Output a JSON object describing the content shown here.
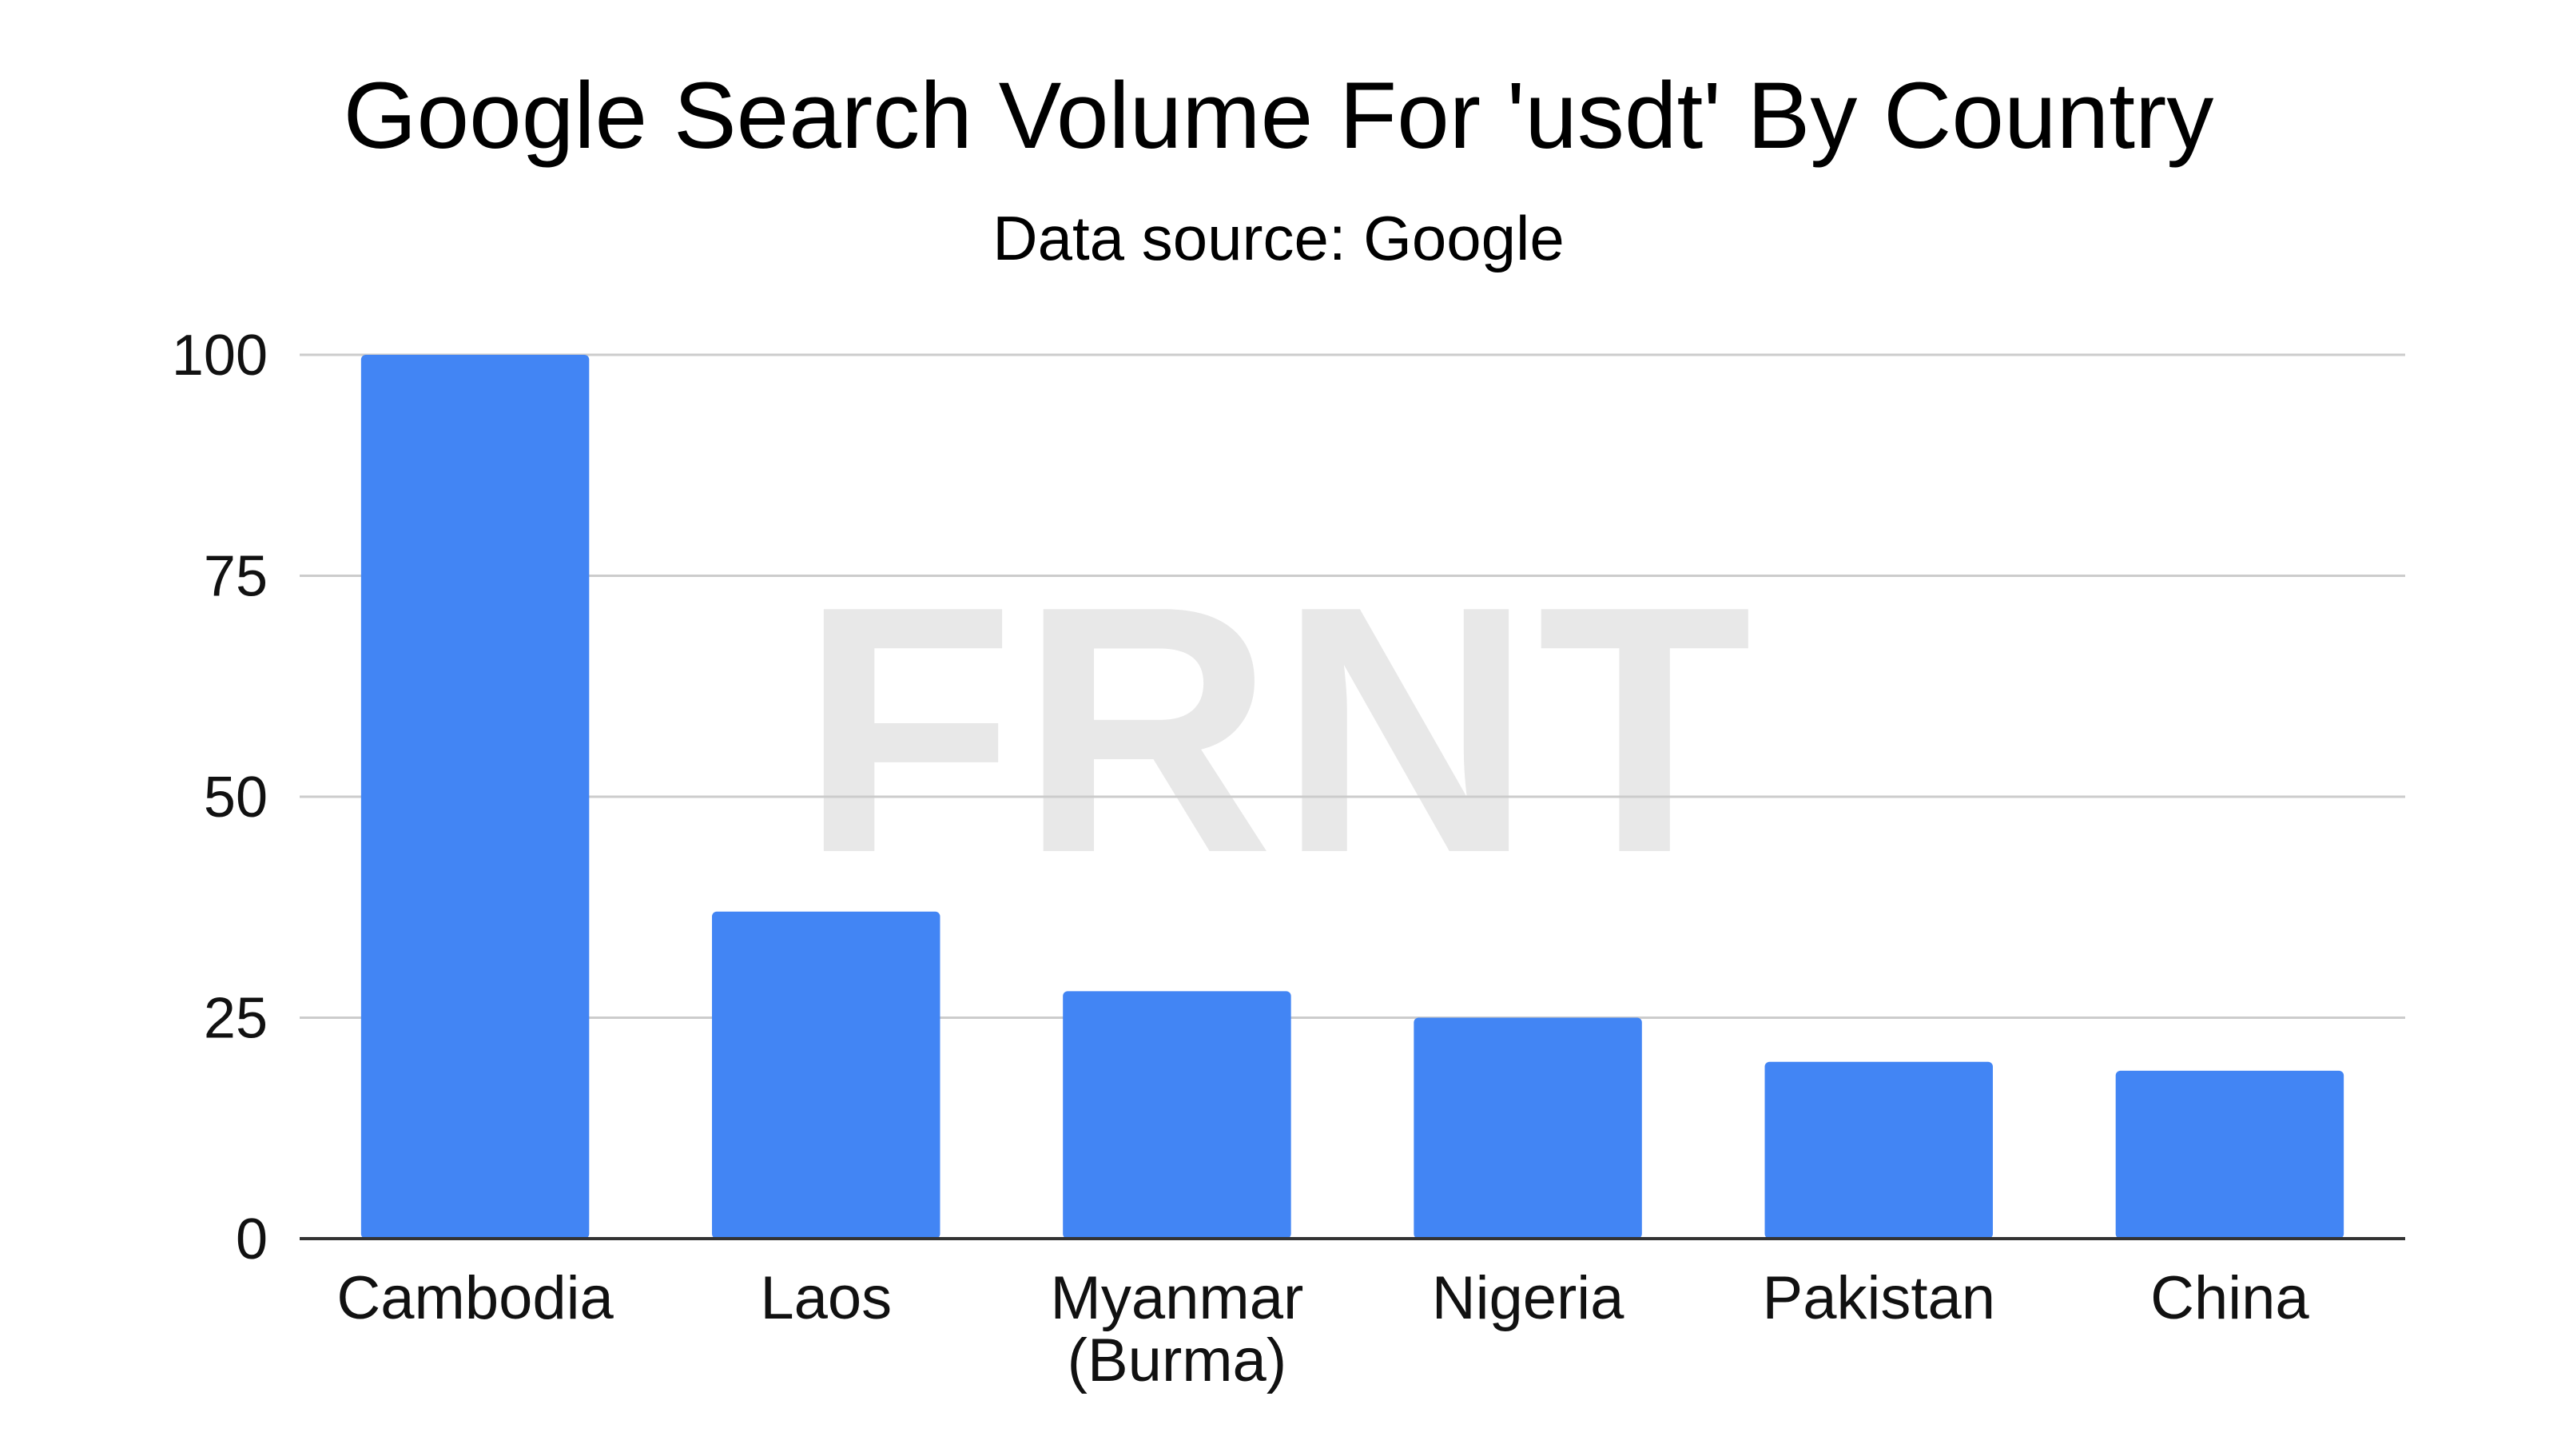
{
  "chart_data": {
    "type": "bar",
    "title": "Google Search Volume For 'usdt' By Country",
    "subtitle": "Data source: Google",
    "categories": [
      "Cambodia",
      "Laos",
      "Myanmar (Burma)",
      "Nigeria",
      "Pakistan",
      "China"
    ],
    "category_lines": [
      [
        "Cambodia"
      ],
      [
        "Laos"
      ],
      [
        "Myanmar",
        "(Burma)"
      ],
      [
        "Nigeria"
      ],
      [
        "Pakistan"
      ],
      [
        "China"
      ]
    ],
    "values": [
      100,
      37,
      28,
      25,
      20,
      19
    ],
    "xlabel": "",
    "ylabel": "",
    "ylim": [
      0,
      100
    ],
    "yticks": [
      0,
      25,
      50,
      75,
      100
    ],
    "ytick_labels": [
      "0",
      "25",
      "50",
      "75",
      "100"
    ],
    "grid": true,
    "legend": "none",
    "bar_color": "#4285f4",
    "watermark": "FRNT"
  }
}
